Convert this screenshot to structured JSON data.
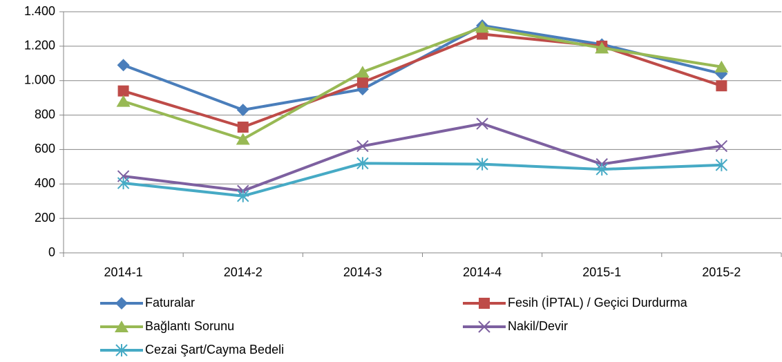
{
  "chart_data": {
    "type": "line",
    "categories": [
      "2014-1",
      "2014-2",
      "2014-3",
      "2014-4",
      "2015-1",
      "2015-2"
    ],
    "series": [
      {
        "name": "Faturalar",
        "color": "#4a7ebb",
        "marker": "diamond",
        "values": [
          1090,
          830,
          950,
          1320,
          1210,
          1040
        ]
      },
      {
        "name": "Fesih (İPTAL) / Geçici Durdurma",
        "color": "#be4b48",
        "marker": "square",
        "values": [
          940,
          730,
          990,
          1270,
          1200,
          970
        ]
      },
      {
        "name": "Bağlantı Sorunu",
        "color": "#98b954",
        "marker": "triangle",
        "values": [
          880,
          660,
          1050,
          1310,
          1190,
          1080
        ]
      },
      {
        "name": "Nakil/Devir",
        "color": "#7d60a0",
        "marker": "x",
        "values": [
          445,
          360,
          620,
          750,
          515,
          620
        ]
      },
      {
        "name": "Cezai Şart/Cayma Bedeli",
        "color": "#46aac5",
        "marker": "asterisk",
        "values": [
          405,
          330,
          520,
          515,
          485,
          510
        ]
      }
    ],
    "ylim": [
      0,
      1400
    ],
    "yticks": [
      0,
      200,
      400,
      600,
      800,
      {
        "value": 1000,
        "label": "1.000"
      },
      {
        "value": 1200,
        "label": "1.200"
      },
      {
        "value": 1400,
        "label": "1.400"
      }
    ],
    "grid": true,
    "legend": "bottom"
  }
}
